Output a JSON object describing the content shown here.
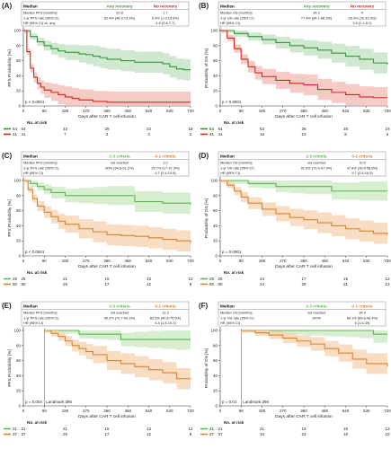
{
  "colors": {
    "green": "#2e9a3a",
    "green_band": "#bfe0bf",
    "red": "#d4261f",
    "red_band": "#f3b9b3",
    "orange": "#d9822b",
    "orange_band": "#f6d2ad",
    "lightgreen": "#59b84f",
    "lightgreen_band": "#c9e8c0",
    "table_header_green": "#3a9a3a",
    "table_header_red": "#c8261f",
    "table_header_orange": "#d9822b"
  },
  "chart_data": [
    {
      "panel": "(A)",
      "type": "line",
      "ylabel": "PFS Probability [%]",
      "xlabel": "Days after CAR T cell infusion",
      "xticks": [
        0,
        90,
        180,
        270,
        360,
        450,
        540,
        630,
        720
      ],
      "yticks": [
        0,
        20,
        40,
        60,
        80,
        100
      ],
      "xlim": [
        0,
        720
      ],
      "ylim": [
        0,
        100
      ],
      "pvalue": "p < 0.0001",
      "table": {
        "headers": [
          "Median",
          "Any recovery",
          "No recovery"
        ],
        "rows": [
          [
            "Median PFS [months]",
            "20.8",
            "1.7"
          ],
          [
            "1-yr PFS rate (95% CI)",
            "62.4% (48.9-73.3%)",
            "5.4% (1.0-15.8%)"
          ],
          [
            "HR (95% CI) vs. any",
            "",
            "4.6 (2.8-7.7)"
          ]
        ]
      },
      "series": [
        {
          "name": "Any recovery",
          "color_key": "green",
          "x": [
            0,
            30,
            60,
            90,
            120,
            150,
            180,
            240,
            270,
            300,
            330,
            360,
            420,
            480,
            540,
            600,
            630,
            660,
            690,
            720
          ],
          "y": [
            100,
            92,
            85,
            80,
            76,
            73,
            71,
            69,
            68,
            66,
            64,
            62,
            60,
            58,
            58,
            56,
            52,
            49,
            48,
            48
          ]
        },
        {
          "name": "No recovery",
          "color_key": "red",
          "x": [
            0,
            15,
            30,
            45,
            60,
            75,
            90,
            120,
            150,
            180,
            210,
            240,
            300,
            360,
            420,
            480,
            540,
            600,
            660,
            720
          ],
          "y": [
            100,
            72,
            50,
            38,
            30,
            25,
            21,
            18,
            15,
            12,
            10,
            8,
            6,
            5,
            5,
            5,
            5,
            5,
            5,
            5
          ]
        }
      ],
      "risk": {
        "label": "No. at risk",
        "xs": [
          0,
          180,
          360,
          540,
          720
        ],
        "rows": [
          {
            "n": "64",
            "color_key": "green",
            "v": [
              "64",
              "43",
              "29",
              "22",
              "18"
            ]
          },
          {
            "n": "41",
            "color_key": "red",
            "v": [
              "41",
              "7",
              "3",
              "3",
              "2"
            ]
          }
        ]
      }
    },
    {
      "panel": "(B)",
      "type": "line",
      "ylabel": "Probability of OS [%]",
      "xlabel": "Days after CAR T cell infusion",
      "xticks": [
        0,
        90,
        180,
        270,
        360,
        450,
        540,
        630,
        720
      ],
      "yticks": [
        0,
        20,
        40,
        60,
        80,
        100
      ],
      "xlim": [
        0,
        720
      ],
      "ylim": [
        0,
        100
      ],
      "pvalue": "p < 0.0001",
      "table": {
        "headers": [
          "Median",
          "Any recovery",
          "No recovery"
        ],
        "rows": [
          [
            "Median OS [months]",
            "34.9",
            "4"
          ],
          [
            "1-yr OS rate (95% CI)",
            "77.4% (64.1-86.3%)",
            "28.4% (15.43.3%)"
          ],
          [
            "HR (95% CI)",
            "",
            "3.6 (2.1-6.2)"
          ]
        ]
      },
      "series": [
        {
          "name": "Any recovery",
          "color_key": "green",
          "x": [
            0,
            60,
            120,
            180,
            240,
            300,
            360,
            420,
            480,
            540,
            600,
            660,
            720
          ],
          "y": [
            100,
            96,
            92,
            88,
            84,
            80,
            77,
            74,
            70,
            66,
            62,
            57,
            55
          ]
        },
        {
          "name": "No recovery",
          "color_key": "red",
          "x": [
            0,
            30,
            60,
            90,
            120,
            150,
            180,
            240,
            300,
            360,
            420,
            480,
            540,
            600,
            660,
            720
          ],
          "y": [
            100,
            90,
            76,
            62,
            52,
            44,
            39,
            34,
            30,
            28,
            22,
            18,
            15,
            12,
            11,
            11
          ]
        }
      ],
      "risk": {
        "label": "No. at risk",
        "xs": [
          0,
          180,
          360,
          540,
          720
        ],
        "rows": [
          {
            "n": "64",
            "color_key": "green",
            "v": [
              "64",
              "53",
              "36",
              "28",
              "19"
            ]
          },
          {
            "n": "41",
            "color_key": "red",
            "v": [
              "41",
              "15",
              "10",
              "8",
              "6"
            ]
          }
        ]
      }
    },
    {
      "panel": "(C)",
      "type": "line",
      "ylabel": "PFS Probability [%]",
      "xlabel": "Days after CAR T cell infusion",
      "xticks": [
        0,
        90,
        180,
        270,
        360,
        450,
        540,
        630,
        720
      ],
      "yticks": [
        0,
        20,
        40,
        60,
        80,
        100
      ],
      "xlim": [
        0,
        720
      ],
      "ylim": [
        0,
        100
      ],
      "pvalue": "p < 0.0001",
      "table": {
        "headers": [
          "Median",
          "2-3 criteria",
          "0-1 criteria"
        ],
        "rows": [
          [
            "Median PFS [months]",
            "not reached",
            "3.2"
          ],
          [
            "1-yr PFS rate (95% CI)",
            "80% (54.6-91.2%)",
            "26.7% (17-37.3%)"
          ],
          [
            "HR (95% CI)",
            "-",
            "4.7 (2.4-10.6)"
          ]
        ]
      },
      "series": [
        {
          "name": "2-3 criteria",
          "color_key": "lightgreen",
          "x": [
            0,
            30,
            60,
            90,
            120,
            180,
            240,
            300,
            360,
            480,
            600,
            720
          ],
          "y": [
            100,
            96,
            92,
            88,
            84,
            80,
            80,
            80,
            80,
            72,
            70,
            68
          ]
        },
        {
          "name": "0-1 criteria",
          "color_key": "orange",
          "x": [
            0,
            20,
            40,
            60,
            90,
            120,
            150,
            180,
            240,
            300,
            360,
            420,
            480,
            540,
            600,
            660,
            720
          ],
          "y": [
            100,
            88,
            76,
            66,
            58,
            52,
            46,
            42,
            36,
            32,
            28,
            27,
            26,
            24,
            22,
            20,
            17
          ]
        }
      ],
      "risk": {
        "label": "No. at risk",
        "xs": [
          0,
          180,
          360,
          540,
          720
        ],
        "rows": [
          {
            "n": "25",
            "color_key": "lightgreen",
            "v": [
              "25",
              "21",
              "15",
              "13",
              "12"
            ]
          },
          {
            "n": "80",
            "color_key": "orange",
            "v": [
              "80",
              "28",
              "17",
              "12",
              "8"
            ]
          }
        ]
      }
    },
    {
      "panel": "(D)",
      "type": "line",
      "ylabel": "Probability of OS [%]",
      "xlabel": "Days after CAR T cell infusion",
      "xticks": [
        0,
        90,
        180,
        270,
        360,
        450,
        540,
        630,
        720
      ],
      "yticks": [
        0,
        20,
        40,
        60,
        80,
        100
      ],
      "xlim": [
        0,
        720
      ],
      "ylim": [
        0,
        100
      ],
      "pvalue": "p = 0.0001",
      "table": {
        "headers": [
          "Median",
          "2-3 criteria",
          "0-1 criteria"
        ],
        "rows": [
          [
            "Median OS [months]",
            "not reached",
            "10.9"
          ],
          [
            "1-yr OS rate (95% CI)",
            "91.6% (70.4-97.9%)",
            "47.8% (35.8-58.8%)"
          ],
          [
            "HR (95% CI)",
            "-",
            "5.7 (2.5-16.5)"
          ]
        ]
      },
      "series": [
        {
          "name": "2-3 criteria",
          "color_key": "lightgreen",
          "x": [
            0,
            60,
            120,
            180,
            240,
            300,
            360,
            480,
            600,
            720
          ],
          "y": [
            100,
            100,
            96,
            96,
            92,
            92,
            92,
            86,
            86,
            86
          ]
        },
        {
          "name": "0-1 criteria",
          "color_key": "orange",
          "x": [
            0,
            30,
            60,
            90,
            120,
            180,
            240,
            300,
            360,
            420,
            480,
            540,
            600,
            660,
            720
          ],
          "y": [
            100,
            94,
            86,
            78,
            70,
            62,
            56,
            51,
            48,
            44,
            40,
            36,
            33,
            30,
            28
          ]
        }
      ],
      "risk": {
        "label": "No. at risk",
        "xs": [
          0,
          180,
          360,
          540,
          720
        ],
        "rows": [
          {
            "n": "25",
            "color_key": "lightgreen",
            "v": [
              "25",
              "24",
              "17",
              "15",
              "12"
            ]
          },
          {
            "n": "80",
            "color_key": "orange",
            "v": [
              "80",
              "44",
              "29",
              "21",
              "13"
            ]
          }
        ]
      }
    },
    {
      "panel": "(E)",
      "type": "line",
      "ylabel": "PFS Probability [%]",
      "xlabel": "Days after CAR T cell infusion",
      "xticks": [
        0,
        90,
        180,
        270,
        360,
        450,
        540,
        630,
        720
      ],
      "yticks": [
        0,
        20,
        40,
        60,
        80,
        100
      ],
      "xlim": [
        0,
        720
      ],
      "ylim": [
        0,
        100
      ],
      "pvalue": "p = 0.004",
      "landmark": "Landmark d90",
      "landmark_x": 90,
      "table": {
        "headers": [
          "Median",
          "2-3 criteria",
          "0-1 criteria"
        ],
        "rows": [
          [
            "Median PFS [months]",
            "not reached",
            "12.3"
          ],
          [
            "1-yr PFS rate (95% CI)",
            "95.2% (70.7-99.3%)",
            "60.5% (40.6-75.5%)"
          ],
          [
            "HR (95% CI)",
            "-",
            "4.4 (1.8-15.1)"
          ]
        ]
      },
      "series": [
        {
          "name": "2-3 criteria",
          "color_key": "lightgreen",
          "x": [
            90,
            180,
            240,
            300,
            360,
            420,
            480,
            540,
            600,
            660,
            720
          ],
          "y": [
            100,
            100,
            95,
            95,
            95,
            88,
            88,
            88,
            88,
            88,
            88
          ]
        },
        {
          "name": "0-1 criteria",
          "color_key": "orange",
          "x": [
            90,
            120,
            150,
            180,
            210,
            240,
            270,
            300,
            360,
            420,
            480,
            540,
            600,
            660,
            720
          ],
          "y": [
            100,
            96,
            92,
            86,
            80,
            76,
            72,
            68,
            60,
            56,
            52,
            48,
            44,
            36,
            35
          ]
        }
      ],
      "risk": {
        "label": "No. at risk",
        "xs": [
          0,
          180,
          360,
          540,
          720
        ],
        "rows": [
          {
            "n": "21",
            "color_key": "lightgreen",
            "v": [
              "21",
              "21",
              "15",
              "13",
              "12"
            ]
          },
          {
            "n": "37",
            "color_key": "orange",
            "v": [
              "37",
              "29",
              "17",
              "12",
              "8"
            ]
          }
        ]
      }
    },
    {
      "panel": "(F)",
      "type": "line",
      "ylabel": "Probability of OS [%]",
      "xlabel": "Days after CAR T cell infusion",
      "xticks": [
        0,
        90,
        180,
        270,
        360,
        450,
        540,
        630,
        720
      ],
      "yticks": [
        0,
        20,
        40,
        60,
        80,
        100
      ],
      "xlim": [
        0,
        720
      ],
      "ylim": [
        0,
        100
      ],
      "pvalue": "p = 0.01",
      "landmark": "Landmark d90",
      "landmark_x": 90,
      "table": {
        "headers": [
          "Median",
          "2-3 criteria",
          "0-1 criteria"
        ],
        "rows": [
          [
            "Median OS [months]",
            "not reached",
            "34.9"
          ],
          [
            "1-yr OS rate (95% CI)",
            "100%",
            "89.1% (69.8-96.4%)"
          ],
          [
            "HR (95% CI)",
            "-",
            "6 (1.6-39)"
          ]
        ]
      },
      "series": [
        {
          "name": "2-3 criteria",
          "color_key": "lightgreen",
          "x": [
            90,
            180,
            270,
            360,
            450,
            540,
            600,
            660,
            720
          ],
          "y": [
            100,
            100,
            100,
            100,
            100,
            100,
            100,
            95,
            95
          ]
        },
        {
          "name": "0-1 criteria",
          "color_key": "orange",
          "x": [
            90,
            150,
            210,
            270,
            330,
            390,
            450,
            510,
            570,
            630,
            720
          ],
          "y": [
            100,
            97,
            94,
            90,
            86,
            82,
            76,
            70,
            62,
            56,
            52
          ]
        }
      ],
      "risk": {
        "label": "No. at risk",
        "xs": [
          0,
          180,
          360,
          540,
          720
        ],
        "rows": [
          {
            "n": "21",
            "color_key": "lightgreen",
            "v": [
              "21",
              "21",
              "16",
              "15",
              "13"
            ]
          },
          {
            "n": "37",
            "color_key": "orange",
            "v": [
              "37",
              "34",
              "24",
              "18",
              "10"
            ]
          }
        ]
      }
    }
  ]
}
